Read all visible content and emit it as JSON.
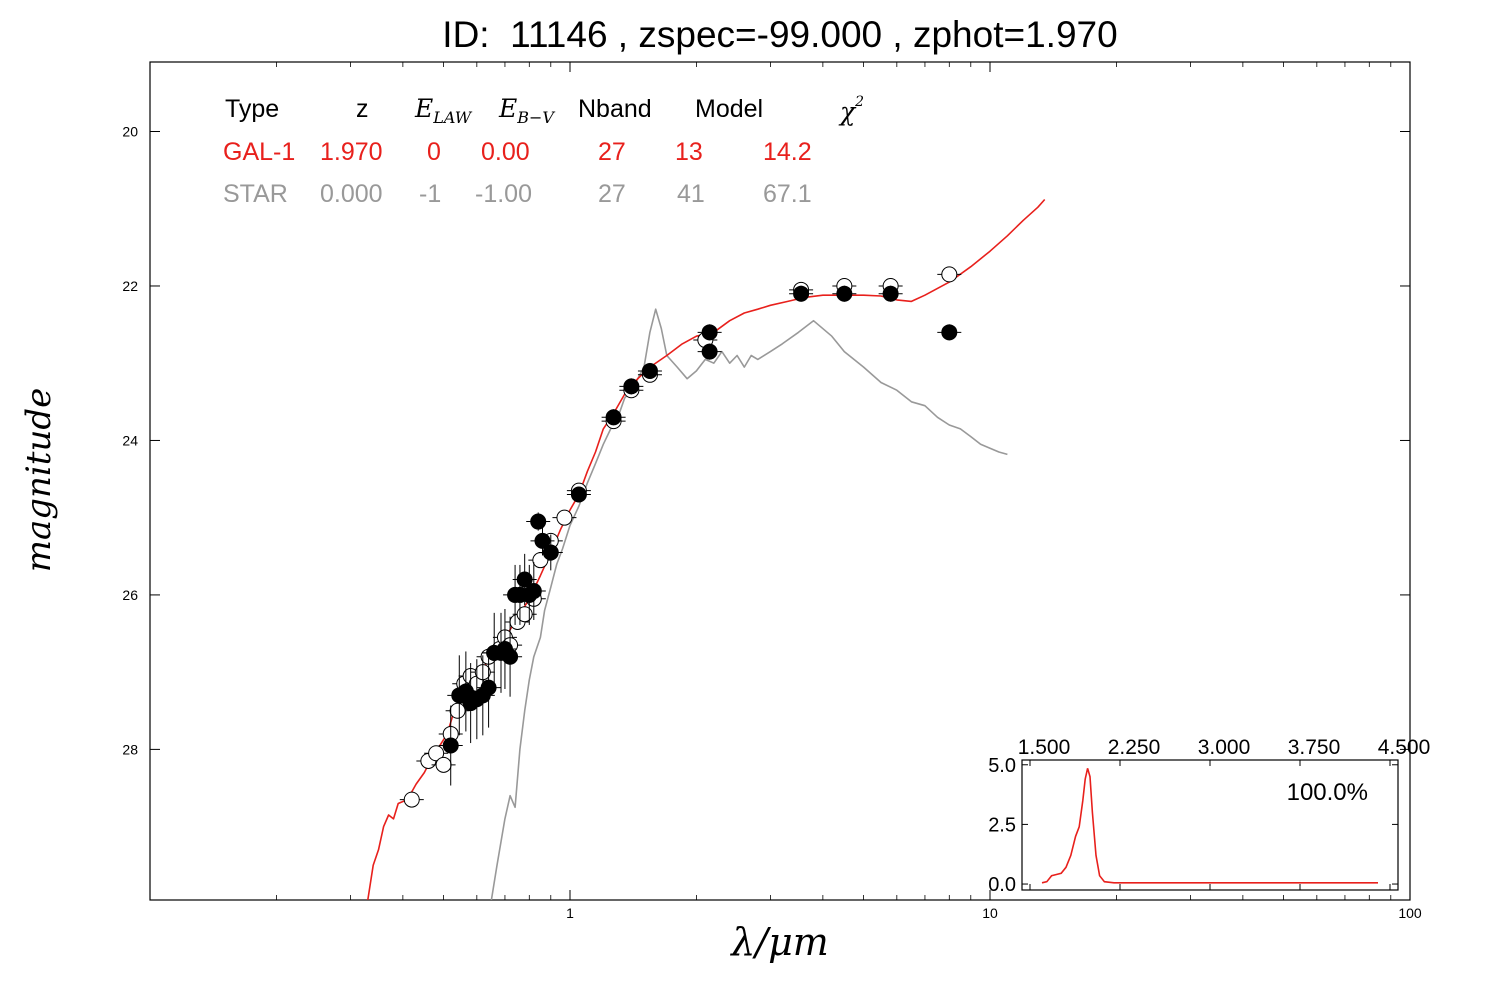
{
  "title": "ID:  11146 , zspec=-99.000 , zphot=1.970",
  "colors": {
    "gal": "#e8201c",
    "star": "#999999",
    "axis": "#000000"
  },
  "fit_table": {
    "headers": {
      "type": "Type",
      "z": "z",
      "elaw_base": "E",
      "elaw_sub": "LAW",
      "ebv_base": "E",
      "ebv_sub": "B−V",
      "nband": "Nband",
      "model": "Model",
      "chi_base": "χ",
      "chi_sup": "2"
    },
    "rows": [
      {
        "type": "GAL-1",
        "z": "1.970",
        "elaw": "0",
        "ebv": "0.00",
        "nband": "27",
        "model": "13",
        "chi2": "14.2"
      },
      {
        "type": "STAR",
        "z": "0.000",
        "elaw": "-1",
        "ebv": "-1.00",
        "nband": "27",
        "model": "41",
        "chi2": "67.1"
      }
    ]
  },
  "chart_data": [
    {
      "type": "scatter",
      "xscale": "log",
      "xlim": [
        0.1,
        100
      ],
      "ylim": [
        29.95,
        19.1
      ],
      "xlabel": "λ/μm",
      "ylabel": "magnitude",
      "xticks": [
        {
          "v": 1,
          "label": "1"
        },
        {
          "v": 10,
          "label": "10"
        },
        {
          "v": 100,
          "label": "100"
        }
      ],
      "yticks": [
        {
          "v": 20,
          "label": "20"
        },
        {
          "v": 22,
          "label": "22"
        },
        {
          "v": 24,
          "label": "24"
        },
        {
          "v": 26,
          "label": "26"
        },
        {
          "v": 28,
          "label": "28"
        }
      ],
      "series": [
        {
          "kind": "line",
          "color": "#e8201c",
          "points": [
            [
              0.33,
              29.95
            ],
            [
              0.34,
              29.5
            ],
            [
              0.35,
              29.3
            ],
            [
              0.36,
              29.0
            ],
            [
              0.37,
              28.85
            ],
            [
              0.38,
              28.9
            ],
            [
              0.39,
              28.7
            ],
            [
              0.41,
              28.65
            ],
            [
              0.43,
              28.45
            ],
            [
              0.45,
              28.3
            ],
            [
              0.47,
              28.1
            ],
            [
              0.49,
              27.95
            ],
            [
              0.51,
              27.8
            ],
            [
              0.53,
              27.5
            ],
            [
              0.55,
              27.35
            ],
            [
              0.57,
              27.25
            ],
            [
              0.6,
              27.05
            ],
            [
              0.63,
              26.9
            ],
            [
              0.66,
              26.75
            ],
            [
              0.69,
              26.6
            ],
            [
              0.72,
              26.45
            ],
            [
              0.76,
              26.25
            ],
            [
              0.8,
              26.05
            ],
            [
              0.85,
              25.75
            ],
            [
              0.9,
              25.45
            ],
            [
              0.95,
              25.15
            ],
            [
              1.0,
              24.9
            ],
            [
              1.05,
              24.7
            ],
            [
              1.1,
              24.4
            ],
            [
              1.15,
              24.15
            ],
            [
              1.2,
              23.85
            ],
            [
              1.27,
              23.65
            ],
            [
              1.35,
              23.4
            ],
            [
              1.45,
              23.2
            ],
            [
              1.55,
              23.05
            ],
            [
              1.7,
              22.9
            ],
            [
              1.85,
              22.75
            ],
            [
              2.0,
              22.65
            ],
            [
              2.2,
              22.6
            ],
            [
              2.4,
              22.45
            ],
            [
              2.6,
              22.35
            ],
            [
              2.8,
              22.3
            ],
            [
              3.0,
              22.25
            ],
            [
              3.3,
              22.2
            ],
            [
              3.6,
              22.15
            ],
            [
              4.0,
              22.12
            ],
            [
              4.5,
              22.12
            ],
            [
              5.0,
              22.12
            ],
            [
              5.5,
              22.13
            ],
            [
              6.0,
              22.18
            ],
            [
              6.5,
              22.2
            ],
            [
              7.0,
              22.12
            ],
            [
              8.0,
              21.95
            ],
            [
              9.0,
              21.75
            ],
            [
              10.0,
              21.55
            ],
            [
              11.0,
              21.35
            ],
            [
              12.0,
              21.15
            ],
            [
              13.0,
              20.98
            ],
            [
              13.5,
              20.88
            ]
          ]
        },
        {
          "kind": "line",
          "color": "#999999",
          "points": [
            [
              0.65,
              29.95
            ],
            [
              0.67,
              29.5
            ],
            [
              0.7,
              28.9
            ],
            [
              0.72,
              28.6
            ],
            [
              0.74,
              28.75
            ],
            [
              0.76,
              28.0
            ],
            [
              0.78,
              27.5
            ],
            [
              0.8,
              27.1
            ],
            [
              0.82,
              26.8
            ],
            [
              0.85,
              26.55
            ],
            [
              0.87,
              26.2
            ],
            [
              0.9,
              25.9
            ],
            [
              0.93,
              25.6
            ],
            [
              0.96,
              25.4
            ],
            [
              1.0,
              25.1
            ],
            [
              1.05,
              24.85
            ],
            [
              1.1,
              24.55
            ],
            [
              1.15,
              24.3
            ],
            [
              1.2,
              24.05
            ],
            [
              1.25,
              23.85
            ],
            [
              1.3,
              23.7
            ],
            [
              1.35,
              23.45
            ],
            [
              1.4,
              23.35
            ],
            [
              1.45,
              23.2
            ],
            [
              1.5,
              23.05
            ],
            [
              1.55,
              22.6
            ],
            [
              1.6,
              22.3
            ],
            [
              1.65,
              22.55
            ],
            [
              1.7,
              22.9
            ],
            [
              1.8,
              23.05
            ],
            [
              1.9,
              23.2
            ],
            [
              2.0,
              23.1
            ],
            [
              2.1,
              22.95
            ],
            [
              2.2,
              23.0
            ],
            [
              2.3,
              22.85
            ],
            [
              2.4,
              23.0
            ],
            [
              2.5,
              22.9
            ],
            [
              2.6,
              23.05
            ],
            [
              2.7,
              22.9
            ],
            [
              2.8,
              22.95
            ],
            [
              3.0,
              22.85
            ],
            [
              3.2,
              22.75
            ],
            [
              3.5,
              22.6
            ],
            [
              3.8,
              22.45
            ],
            [
              4.2,
              22.65
            ],
            [
              4.5,
              22.85
            ],
            [
              5.0,
              23.05
            ],
            [
              5.5,
              23.25
            ],
            [
              6.0,
              23.35
            ],
            [
              6.5,
              23.5
            ],
            [
              7.0,
              23.55
            ],
            [
              7.5,
              23.7
            ],
            [
              8.0,
              23.8
            ],
            [
              8.5,
              23.85
            ],
            [
              9.0,
              23.95
            ],
            [
              9.5,
              24.05
            ],
            [
              10.0,
              24.1
            ],
            [
              10.5,
              24.15
            ],
            [
              11.0,
              24.18
            ]
          ]
        },
        {
          "kind": "points",
          "name": "open",
          "marker": "open-circle",
          "points": [
            [
              0.42,
              28.65
            ],
            [
              0.46,
              28.15
            ],
            [
              0.48,
              28.05
            ],
            [
              0.5,
              28.2
            ],
            [
              0.52,
              27.8
            ],
            [
              0.54,
              27.5
            ],
            [
              0.56,
              27.15
            ],
            [
              0.58,
              27.05
            ],
            [
              0.6,
              27.15
            ],
            [
              0.62,
              27.0
            ],
            [
              0.64,
              26.8
            ],
            [
              0.66,
              26.75
            ],
            [
              0.68,
              26.7
            ],
            [
              0.7,
              26.55
            ],
            [
              0.72,
              26.65
            ],
            [
              0.75,
              26.35
            ],
            [
              0.78,
              26.25
            ],
            [
              0.8,
              25.95
            ],
            [
              0.82,
              26.05
            ],
            [
              0.85,
              25.55
            ],
            [
              0.9,
              25.3
            ],
            [
              0.97,
              25.0
            ],
            [
              1.05,
              24.65
            ],
            [
              1.27,
              23.75
            ],
            [
              1.4,
              23.35
            ],
            [
              1.55,
              23.15
            ],
            [
              2.1,
              22.7
            ],
            [
              3.55,
              22.05
            ],
            [
              4.5,
              22.0
            ],
            [
              5.8,
              22.0
            ],
            [
              8.0,
              21.85
            ]
          ]
        },
        {
          "kind": "points",
          "name": "filled",
          "marker": "filled-circle",
          "points": [
            [
              0.52,
              27.95
            ],
            [
              0.545,
              27.3
            ],
            [
              0.565,
              27.25
            ],
            [
              0.58,
              27.4
            ],
            [
              0.6,
              27.35
            ],
            [
              0.62,
              27.3
            ],
            [
              0.64,
              27.2
            ],
            [
              0.66,
              26.75
            ],
            [
              0.685,
              26.75
            ],
            [
              0.7,
              26.7
            ],
            [
              0.72,
              26.8
            ],
            [
              0.74,
              26.0
            ],
            [
              0.76,
              26.0
            ],
            [
              0.78,
              25.8
            ],
            [
              0.8,
              26.0
            ],
            [
              0.82,
              25.95
            ],
            [
              0.84,
              25.05
            ],
            [
              0.86,
              25.3
            ],
            [
              0.9,
              25.45
            ],
            [
              1.05,
              24.7
            ],
            [
              1.27,
              23.7
            ],
            [
              1.4,
              23.3
            ],
            [
              1.55,
              23.1
            ],
            [
              2.15,
              22.6
            ],
            [
              2.15,
              22.85
            ],
            [
              3.55,
              22.1
            ],
            [
              4.5,
              22.1
            ],
            [
              5.8,
              22.1
            ],
            [
              8.0,
              22.6
            ]
          ]
        }
      ]
    },
    {
      "type": "line",
      "inset": true,
      "xlim": [
        1.5,
        4.5
      ],
      "ylim": [
        -0.25,
        5.2
      ],
      "xticks": [
        {
          "v": 1.5,
          "label": "1.500"
        },
        {
          "v": 2.25,
          "label": "2.250"
        },
        {
          "v": 3.0,
          "label": "3.000"
        },
        {
          "v": 3.75,
          "label": "3.750"
        },
        {
          "v": 4.5,
          "label": "4.500"
        }
      ],
      "yticks": [
        {
          "v": 0.0,
          "label": "0.0"
        },
        {
          "v": 2.5,
          "label": "2.5"
        },
        {
          "v": 5.0,
          "label": "5.0"
        }
      ],
      "annotation": "100.0%",
      "color": "#e8201c",
      "points": [
        [
          1.6,
          0.05
        ],
        [
          1.64,
          0.1
        ],
        [
          1.68,
          0.35
        ],
        [
          1.72,
          0.4
        ],
        [
          1.76,
          0.45
        ],
        [
          1.8,
          0.7
        ],
        [
          1.84,
          1.2
        ],
        [
          1.88,
          2.0
        ],
        [
          1.91,
          2.4
        ],
        [
          1.94,
          3.5
        ],
        [
          1.96,
          4.4
        ],
        [
          1.98,
          4.85
        ],
        [
          2.0,
          4.5
        ],
        [
          2.02,
          3.0
        ],
        [
          2.05,
          1.2
        ],
        [
          2.08,
          0.35
        ],
        [
          2.12,
          0.1
        ],
        [
          2.2,
          0.05
        ],
        [
          2.6,
          0.05
        ],
        [
          3.2,
          0.05
        ],
        [
          3.8,
          0.05
        ],
        [
          4.4,
          0.05
        ]
      ]
    }
  ]
}
